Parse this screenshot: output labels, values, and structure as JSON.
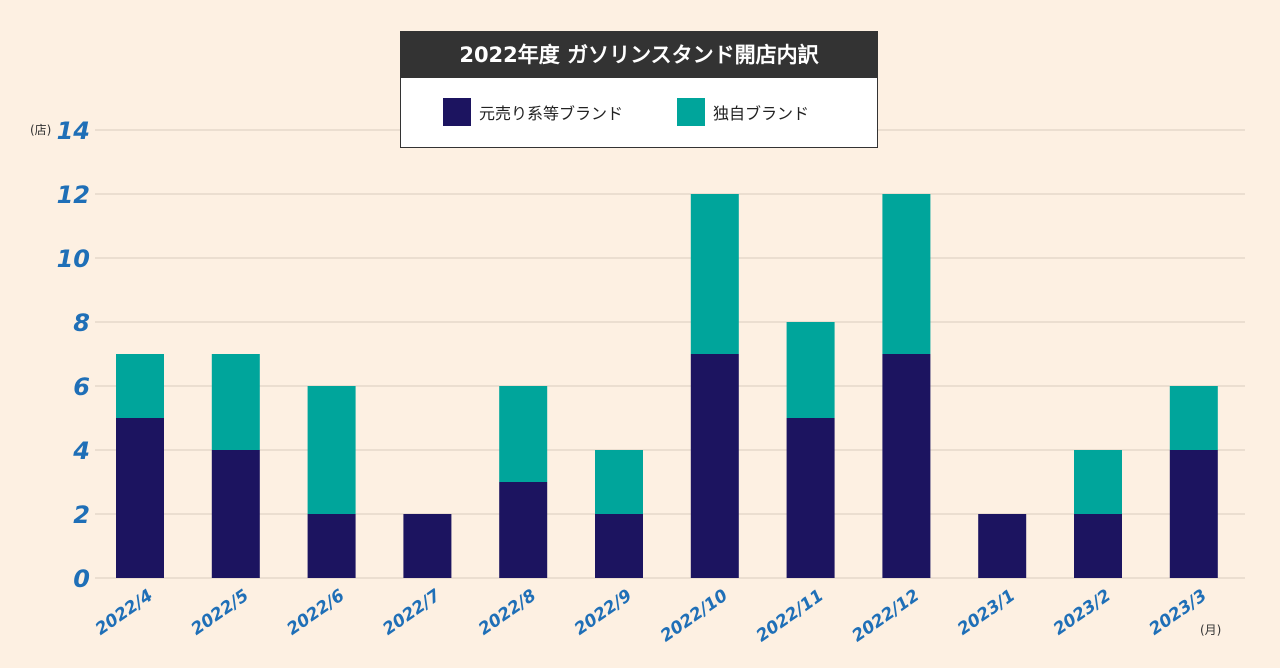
{
  "chart_data": {
    "type": "bar",
    "stacked": true,
    "title": "2022年度 ガソリンスタンド開店内訳",
    "y_unit": "(店)",
    "x_unit": "(月)",
    "ylim": [
      0,
      14
    ],
    "yticks": [
      0,
      2,
      4,
      6,
      8,
      10,
      12,
      14
    ],
    "grid": true,
    "categories": [
      "2022/4",
      "2022/5",
      "2022/6",
      "2022/7",
      "2022/8",
      "2022/9",
      "2022/10",
      "2022/11",
      "2022/12",
      "2023/1",
      "2023/2",
      "2023/3"
    ],
    "series": [
      {
        "name": "元売り系等ブランド",
        "color": "#1c1460",
        "values": [
          5,
          4,
          2,
          2,
          3,
          2,
          7,
          5,
          7,
          2,
          2,
          4
        ]
      },
      {
        "name": "独自ブランド",
        "color": "#00a59b",
        "values": [
          2,
          3,
          4,
          0,
          3,
          2,
          5,
          3,
          5,
          0,
          2,
          2
        ]
      }
    ],
    "legend_position": "top-center"
  },
  "colors": {
    "background": "#fdf0e2",
    "axis_text": "#1f6fb7",
    "grid": "#d9cdbf"
  }
}
